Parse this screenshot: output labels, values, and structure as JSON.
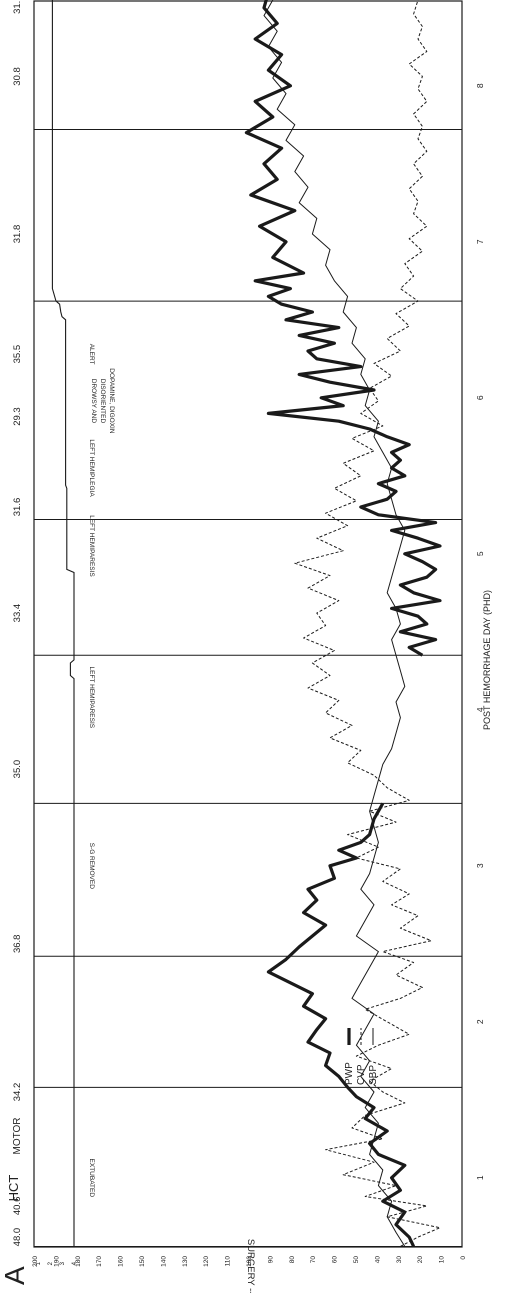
{
  "figure": {
    "panel_letter": "A",
    "axis_left_labels": {
      "hct": "HCT",
      "motor": "MOTOR"
    }
  },
  "colors": {
    "ink": "#1a1a1a",
    "paper": "#ffffff"
  },
  "chart_data": {
    "type": "line",
    "orientation": "rotated 90° (time runs bottom to top)",
    "xlabel": "POST HEMORRHAGE DAY (PHD)",
    "x_ticks": [
      "1",
      "2",
      "3",
      "4",
      "5",
      "6",
      "7",
      "8"
    ],
    "xlim": [
      0.55,
      8.55
    ],
    "ylim": [
      0,
      200
    ],
    "y_ticks_inner": [
      0,
      10,
      20,
      30,
      40,
      50,
      60,
      70,
      80,
      90,
      100,
      110,
      120,
      130,
      140,
      150,
      160,
      170,
      180,
      190,
      200
    ],
    "y_ticks_outer": [
      0,
      2,
      3,
      5,
      10,
      12,
      15,
      17,
      18,
      19,
      20,
      21,
      22,
      23,
      24,
      25
    ],
    "motor_ticks": [
      "1",
      "2",
      "3",
      "4"
    ],
    "motor_scale": [
      1,
      4
    ],
    "grid": "vertical day lines at each day boundary",
    "legend": {
      "position": "bottom-left",
      "entries": [
        {
          "label": "PWP",
          "style": "thick-solid"
        },
        {
          "label": "CVP",
          "style": "dashed"
        },
        {
          "label": "SBP",
          "style": "thin-solid"
        }
      ]
    },
    "hct_values": [
      {
        "day": 0.62,
        "value": "48.0"
      },
      {
        "day": 0.82,
        "value": "40.6"
      },
      {
        "day": 1.55,
        "value": "34.2"
      },
      {
        "day": 2.5,
        "value": "36.8"
      },
      {
        "day": 3.62,
        "value": "35.0"
      },
      {
        "day": 4.62,
        "value": "33.4"
      },
      {
        "day": 5.3,
        "value": "31.6"
      },
      {
        "day": 5.88,
        "value": "29.3"
      },
      {
        "day": 6.28,
        "value": "35.5"
      },
      {
        "day": 7.05,
        "value": "31.8"
      },
      {
        "day": 8.06,
        "value": "30.8"
      },
      {
        "day": 8.52,
        "value": "31.1"
      }
    ],
    "day_lines": [
      0.56,
      1.58,
      2.42,
      3.4,
      4.35,
      5.22,
      6.62,
      7.72
    ],
    "annotations": [
      {
        "day": 0.45,
        "text": "SURGERY -------",
        "lines": []
      },
      {
        "day": 1.0,
        "text": "EXTUBATED",
        "lines": []
      },
      {
        "day": 3.0,
        "text": "S-G REMOVED",
        "lines": []
      },
      {
        "day": 4.08,
        "text": "LEFT HEMIPARESIS",
        "lines": []
      },
      {
        "day": 5.05,
        "text": "LEFT HEMIPARESIS",
        "lines": []
      },
      {
        "day": 5.55,
        "text": "LEFT HEMIPLEGIA",
        "lines": []
      },
      {
        "day": 5.98,
        "text": "DROWSY AND DISORIENTED DOPAMINE, DIGOXIN",
        "lines": [
          "DROWSY AND",
          "DISORIENTED",
          "DOPAMINE, DIGOXIN"
        ]
      },
      {
        "day": 6.28,
        "text": "ALERT",
        "lines": []
      }
    ],
    "motor": {
      "day": [
        0.56,
        3.55,
        3.55,
        4.2,
        4.22,
        4.3,
        4.32,
        4.88,
        4.9,
        5.42,
        5.44,
        6.5,
        6.52,
        6.55,
        6.6,
        6.62,
        6.7,
        8.6
      ],
      "value": [
        4,
        4,
        4,
        4,
        3.7,
        3.7,
        4,
        4,
        3.4,
        3.4,
        3.3,
        3.3,
        3.0,
        2.9,
        2.8,
        2.5,
        2.2,
        2.2
      ]
    },
    "series": [
      {
        "name": "PWP",
        "style": "thick-solid",
        "day": [
          0.56,
          0.62,
          0.7,
          0.78,
          0.85,
          0.92,
          1.0,
          1.08,
          1.15,
          1.22,
          1.3,
          1.38,
          1.45,
          1.52,
          1.58,
          1.65,
          1.72,
          1.8,
          1.87,
          1.95,
          2.02,
          2.1,
          2.18,
          2.25,
          2.32,
          2.4,
          2.48,
          2.55,
          2.62,
          2.7,
          2.78,
          2.85,
          2.92,
          3.0,
          3.05,
          3.1,
          3.15,
          3.2,
          3.3,
          3.4
        ],
        "values": [
          11,
          12,
          15,
          13,
          18,
          14,
          16,
          13,
          19,
          21,
          17,
          22,
          20,
          24,
          26,
          28,
          31,
          30,
          35,
          33,
          31,
          36,
          34,
          39,
          44,
          40,
          37,
          34,
          31,
          36,
          33,
          35,
          29,
          30,
          24,
          28,
          23,
          21,
          20,
          18
        ]
      },
      {
        "name": "PWP",
        "style": "thick-solid",
        "day": [
          4.35,
          4.4,
          4.45,
          4.5,
          4.55,
          4.6,
          4.65,
          4.7,
          4.75,
          4.8,
          4.85,
          4.9,
          4.95,
          5.0,
          5.05,
          5.1,
          5.15,
          5.2,
          5.25,
          5.3,
          5.35,
          5.4,
          5.45,
          5.5,
          5.55,
          5.6,
          5.65,
          5.7,
          5.75,
          5.8,
          5.85,
          5.9,
          5.95,
          6.0,
          6.05,
          6.1,
          6.15,
          6.2,
          6.25,
          6.3,
          6.35,
          6.4,
          6.45,
          6.5,
          6.55,
          6.6,
          6.65,
          6.7,
          6.75,
          6.8,
          6.9,
          7.0,
          7.1,
          7.2,
          7.3,
          7.4,
          7.5,
          7.6,
          7.7,
          7.8,
          7.9,
          8.0,
          8.1,
          8.2,
          8.3,
          8.4,
          8.5,
          8.6
        ],
        "values": [
          9,
          12,
          6,
          14,
          8,
          10,
          16,
          5,
          11,
          14,
          8,
          6,
          9,
          13,
          5,
          10,
          16,
          6,
          19,
          23,
          17,
          15,
          19,
          13,
          16,
          14,
          16,
          12,
          17,
          21,
          28,
          44,
          27,
          32,
          20,
          30,
          37,
          23,
          33,
          35,
          29,
          37,
          28,
          40,
          34,
          41,
          44,
          39,
          47,
          36,
          43,
          40,
          46,
          38,
          48,
          42,
          45,
          41,
          49,
          43,
          47,
          39,
          44,
          41,
          47,
          42,
          45,
          44
        ]
      },
      {
        "name": "CVP",
        "style": "dashed",
        "day": [
          0.56,
          0.62,
          0.68,
          0.75,
          0.82,
          0.88,
          0.95,
          1.02,
          1.1,
          1.18,
          1.25,
          1.32,
          1.4,
          1.48,
          1.55,
          1.62,
          1.7,
          1.78,
          1.85,
          1.92,
          2.0,
          2.08,
          2.15,
          2.22,
          2.3,
          2.38,
          2.45,
          2.52,
          2.6,
          2.68,
          2.75,
          2.82,
          2.9,
          2.98,
          3.05,
          3.12,
          3.2,
          3.28,
          3.35,
          3.42,
          3.5,
          3.58,
          3.66,
          3.74,
          3.82,
          3.9,
          3.98,
          4.06,
          4.14,
          4.22,
          4.3,
          4.38,
          4.46,
          4.54,
          4.62,
          4.7,
          4.78,
          4.86,
          4.94,
          5.02,
          5.1,
          5.18,
          5.26,
          5.34,
          5.42,
          5.5,
          5.58,
          5.66,
          5.74,
          5.82,
          5.9,
          5.98,
          6.06,
          6.14,
          6.22,
          6.3,
          6.38,
          6.46,
          6.54,
          6.62,
          6.7,
          6.78,
          6.86,
          6.94,
          7.02,
          7.1,
          7.18,
          7.26,
          7.34,
          7.42,
          7.5,
          7.58,
          7.66,
          7.74,
          7.82,
          7.9,
          7.98,
          8.06,
          8.14,
          8.22,
          8.3,
          8.38,
          8.46,
          8.55
        ],
        "values": [
          14,
          10,
          5,
          17,
          8,
          22,
          15,
          27,
          20,
          31,
          18,
          25,
          22,
          13,
          18,
          21,
          16,
          24,
          19,
          12,
          17,
          22,
          14,
          9,
          15,
          11,
          18,
          7,
          14,
          10,
          16,
          12,
          18,
          14,
          24,
          19,
          26,
          15,
          21,
          12,
          17,
          20,
          26,
          23,
          30,
          25,
          31,
          28,
          35,
          30,
          34,
          29,
          36,
          31,
          33,
          28,
          35,
          30,
          38,
          27,
          33,
          26,
          31,
          24,
          29,
          23,
          27,
          20,
          25,
          18,
          23,
          19,
          21,
          16,
          20,
          14,
          17,
          12,
          15,
          10,
          14,
          11,
          13,
          9,
          12,
          8,
          11,
          10,
          12,
          9,
          11,
          8,
          10,
          9,
          11,
          8,
          10,
          9,
          12,
          8,
          10,
          9,
          11,
          10
        ]
      },
      {
        "name": "SBP",
        "style": "thin-solid",
        "day": [
          0.56,
          0.65,
          0.75,
          0.85,
          0.95,
          1.05,
          1.15,
          1.25,
          1.35,
          1.45,
          1.55,
          1.65,
          1.75,
          1.85,
          1.95,
          2.05,
          2.15,
          2.25,
          2.35,
          2.45,
          2.55,
          2.65,
          2.75,
          2.85,
          2.95,
          3.05,
          3.15,
          3.25,
          3.35,
          3.45,
          3.55,
          3.65,
          3.75,
          3.85,
          3.95,
          4.05,
          4.15,
          4.25,
          4.35,
          4.45,
          4.55,
          4.65,
          4.75,
          4.85,
          4.95,
          5.05,
          5.15,
          5.25,
          5.35,
          5.45,
          5.55,
          5.65,
          5.75,
          5.85,
          5.95,
          6.05,
          6.15,
          6.25,
          6.35,
          6.45,
          6.55,
          6.65,
          6.75,
          6.85,
          6.95,
          7.05,
          7.15,
          7.25,
          7.35,
          7.45,
          7.55,
          7.65,
          7.75,
          7.85,
          7.95,
          8.05,
          8.15,
          8.25,
          8.35,
          8.45,
          8.55
        ],
        "values": [
          13,
          15,
          17,
          16,
          19,
          18,
          21,
          20,
          19,
          22,
          20,
          23,
          21,
          24,
          22,
          20,
          25,
          23,
          21,
          19,
          24,
          22,
          20,
          23,
          21,
          20,
          19,
          20,
          21,
          20,
          19,
          18,
          16,
          15,
          14,
          15,
          13,
          14,
          15,
          16,
          14,
          15,
          17,
          16,
          15,
          14,
          13,
          15,
          16,
          17,
          16,
          18,
          20,
          19,
          22,
          21,
          23,
          22,
          25,
          24,
          27,
          26,
          29,
          31,
          30,
          34,
          33,
          37,
          35,
          38,
          36,
          40,
          38,
          42,
          40,
          43,
          41,
          44,
          42,
          45,
          43
        ]
      }
    ]
  }
}
